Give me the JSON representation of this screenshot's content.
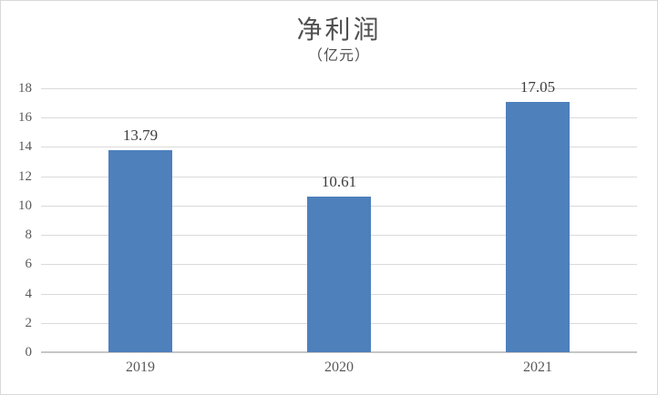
{
  "chart_data": {
    "type": "bar",
    "title": "净利润",
    "subtitle": "（亿元）",
    "categories": [
      "2019",
      "2020",
      "2021"
    ],
    "values": [
      13.79,
      10.61,
      17.05
    ],
    "data_labels": [
      "13.79",
      "10.61",
      "17.05"
    ],
    "xlabel": "",
    "ylabel": "",
    "ylim": [
      0,
      18
    ],
    "ytick_step": 2,
    "yticks": [
      0,
      2,
      4,
      6,
      8,
      10,
      12,
      14,
      16,
      18
    ],
    "grid": true,
    "legend": false,
    "legend_position": "none",
    "bar_color": "#4E80BC",
    "gridline_color": "#dadada",
    "axis_line_color": "#c6c6c6",
    "text_color": "#595959",
    "value_label_color": "#3d3d3d"
  }
}
